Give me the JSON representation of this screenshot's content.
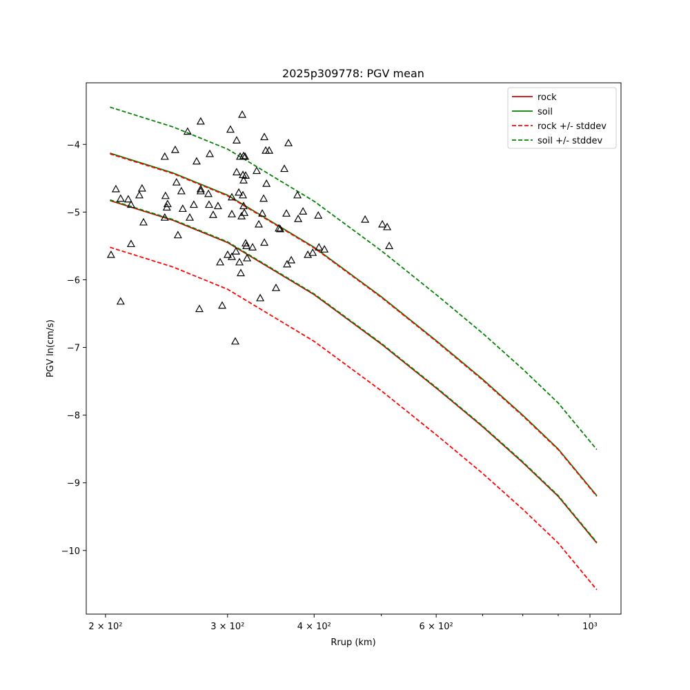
{
  "chart_data": {
    "type": "line",
    "title": "2025p309778: PGV mean",
    "xlabel": "Rrup (km)",
    "ylabel": "PGV ln(cm/s)",
    "xscale": "log",
    "xlim": [
      187.6,
      1108.7
    ],
    "ylim": [
      -10.94,
      -3.09
    ],
    "xticks": [
      {
        "value": 200,
        "label": "2 × 10²"
      },
      {
        "value": 300,
        "label": "3 × 10²"
      },
      {
        "value": 400,
        "label": "4 × 10²"
      },
      {
        "value": 600,
        "label": "6 × 10²"
      },
      {
        "value": 1000,
        "label": "10³"
      }
    ],
    "xminor_ticks": [
      500,
      700,
      800,
      900
    ],
    "yticks": [
      {
        "value": -4,
        "label": "−4"
      },
      {
        "value": -5,
        "label": "−5"
      },
      {
        "value": -6,
        "label": "−6"
      },
      {
        "value": -7,
        "label": "−7"
      },
      {
        "value": -8,
        "label": "−8"
      },
      {
        "value": -9,
        "label": "−9"
      },
      {
        "value": -10,
        "label": "−10"
      }
    ],
    "legend": "upper right",
    "x": [
      203,
      250,
      300,
      400,
      500,
      600,
      700,
      800,
      900,
      1023
    ],
    "series": [
      {
        "name": "rock",
        "color": "#d00000",
        "dashed": false,
        "values": [
          -4.83,
          -5.12,
          -5.45,
          -6.22,
          -6.95,
          -7.6,
          -8.17,
          -8.7,
          -9.2,
          -9.89
        ]
      },
      {
        "name": "soil",
        "color": "#007f00",
        "dashed": false,
        "values": [
          -4.13,
          -4.42,
          -4.75,
          -5.52,
          -6.25,
          -6.9,
          -7.47,
          -8.0,
          -8.5,
          -9.19
        ]
      },
      {
        "name": "rock +/- stddev",
        "color": "#ff0000",
        "dashed": true,
        "upper": [
          -4.14,
          -4.43,
          -4.76,
          -5.53,
          -6.26,
          -6.91,
          -7.48,
          -8.01,
          -8.51,
          -9.2
        ],
        "lower": [
          -5.52,
          -5.81,
          -6.14,
          -6.91,
          -7.64,
          -8.29,
          -8.86,
          -9.39,
          -9.89,
          -10.58
        ]
      },
      {
        "name": "soil +/- stddev",
        "color": "#008000",
        "dashed": true,
        "upper": [
          -3.45,
          -3.74,
          -4.07,
          -4.84,
          -5.57,
          -6.22,
          -6.79,
          -7.32,
          -7.82,
          -8.51
        ],
        "lower": [
          -4.82,
          -5.11,
          -5.44,
          -6.21,
          -6.94,
          -7.59,
          -8.16,
          -8.69,
          -9.19,
          -9.88
        ]
      }
    ],
    "observations": {
      "marker": "triangle",
      "color": "#000000",
      "x": [
        203.7,
        207,
        210.3,
        210.3,
        215.7,
        217.7,
        217.7,
        223.8,
        225.8,
        226.9,
        243.5,
        244.1,
        243.5,
        245.2,
        245.8,
        252.1,
        253.2,
        254.4,
        257.3,
        258.5,
        262.7,
        264.6,
        268.2,
        270.7,
        273.2,
        274.4,
        274.4,
        274.4,
        281.5,
        282.1,
        282.8,
        286,
        290.6,
        292.7,
        294.7,
        300.1,
        302.9,
        304.3,
        304.3,
        304.3,
        308.5,
        309.2,
        309.2,
        311.4,
        312.1,
        312.8,
        313.5,
        314.3,
        315,
        315.7,
        315.7,
        316.4,
        316.4,
        316.4,
        317.2,
        317.9,
        318.6,
        318.6,
        319.4,
        320.1,
        326,
        330.5,
        332.8,
        334.4,
        336.7,
        338.2,
        339,
        339,
        340.6,
        341.4,
        344.5,
        352.4,
        355.7,
        357.3,
        362.3,
        364.8,
        365.6,
        367.3,
        370.7,
        378.4,
        379.3,
        385.5,
        391.7,
        398.1,
        405.5,
        406.4,
        413.9,
        473.8,
        501.7,
        509.8,
        513.3,
        307.8
      ],
      "y": [
        -5.63,
        -4.66,
        -4.8,
        -6.32,
        -4.81,
        -4.89,
        -5.47,
        -4.75,
        -4.65,
        -5.15,
        -4.18,
        -4.76,
        -5.08,
        -4.93,
        -4.88,
        -4.08,
        -4.56,
        -5.34,
        -4.69,
        -4.95,
        -3.81,
        -5.08,
        -4.89,
        -4.25,
        -6.43,
        -3.66,
        -4.66,
        -4.69,
        -4.73,
        -4.89,
        -4.14,
        -5.04,
        -4.91,
        -5.74,
        -6.38,
        -5.63,
        -3.78,
        -4.78,
        -5.03,
        -5.66,
        -5.58,
        -3.94,
        -4.41,
        -4.71,
        -5.74,
        -4.18,
        -5.9,
        -5.06,
        -3.56,
        -4.45,
        -4.75,
        -4.91,
        -4.53,
        -4.17,
        -5.01,
        -4.18,
        -5.46,
        -4.46,
        -5.5,
        -5.68,
        -5.52,
        -4.39,
        -5.18,
        -6.27,
        -5.02,
        -4.8,
        -3.89,
        -5.45,
        -4.09,
        -4.58,
        -4.09,
        -6.12,
        -5.24,
        -5.25,
        -4.36,
        -5.02,
        -5.77,
        -3.98,
        -5.71,
        -4.75,
        -5.1,
        -4.99,
        -5.63,
        -5.6,
        -5.05,
        -5.52,
        -5.55,
        -5.11,
        -5.18,
        -5.22,
        -5.5,
        -6.91
      ]
    }
  }
}
